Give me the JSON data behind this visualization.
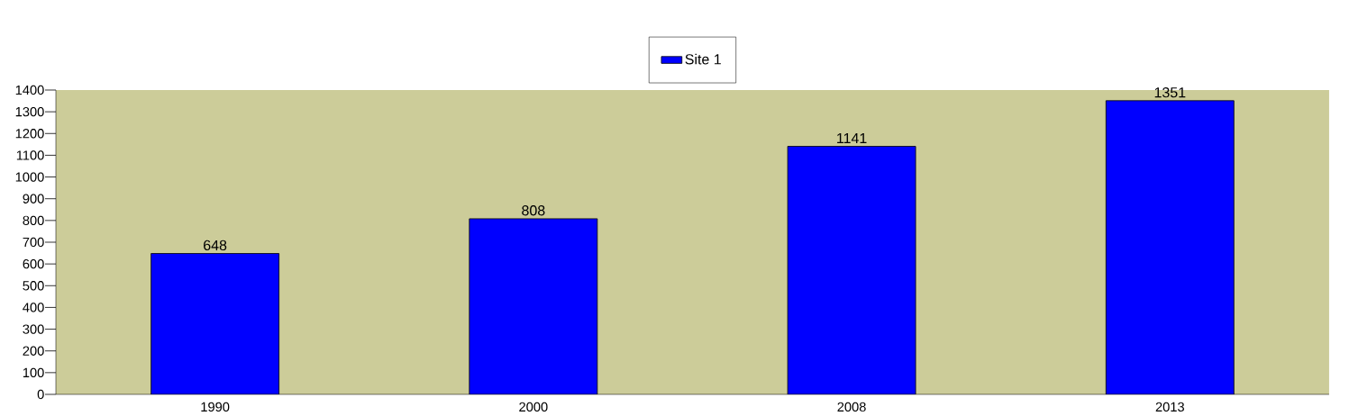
{
  "chart_data": {
    "type": "bar",
    "categories": [
      "1990",
      "2000",
      "2008",
      "2013"
    ],
    "series": [
      {
        "name": "Site 1",
        "color": "#0000ff",
        "values": [
          648,
          808,
          1141,
          1351
        ]
      }
    ],
    "ylim": [
      0,
      1400
    ],
    "yticks": [
      0,
      100,
      200,
      300,
      400,
      500,
      600,
      700,
      800,
      900,
      1000,
      1100,
      1200,
      1300,
      1400
    ],
    "data_labels": true,
    "legend": "top",
    "grid": false
  }
}
